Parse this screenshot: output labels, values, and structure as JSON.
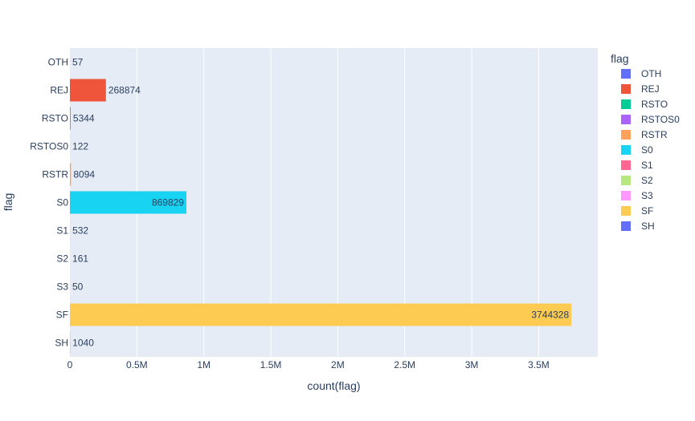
{
  "chart_data": {
    "type": "bar",
    "orientation": "horizontal",
    "xlabel": "count(flag)",
    "ylabel": "flag",
    "xlim": [
      0,
      3941398
    ],
    "x_ticks": [
      {
        "value": 0,
        "label": "0"
      },
      {
        "value": 500000,
        "label": "0.5M"
      },
      {
        "value": 1000000,
        "label": "1M"
      },
      {
        "value": 1500000,
        "label": "1.5M"
      },
      {
        "value": 2000000,
        "label": "2M"
      },
      {
        "value": 2500000,
        "label": "2.5M"
      },
      {
        "value": 3000000,
        "label": "3M"
      },
      {
        "value": 3500000,
        "label": "3.5M"
      }
    ],
    "grid": true,
    "legend": {
      "title": "flag",
      "placement": "right"
    },
    "categories": [
      "OTH",
      "REJ",
      "RSTO",
      "RSTOS0",
      "RSTR",
      "S0",
      "S1",
      "S2",
      "S3",
      "SF",
      "SH"
    ],
    "series": [
      {
        "name": "OTH",
        "value": 57,
        "label": "57",
        "color": "#636efa"
      },
      {
        "name": "REJ",
        "value": 268874,
        "label": "268874",
        "color": "#EF553B"
      },
      {
        "name": "RSTO",
        "value": 5344,
        "label": "5344",
        "color": "#00cc96"
      },
      {
        "name": "RSTOS0",
        "value": 122,
        "label": "122",
        "color": "#ab63fa"
      },
      {
        "name": "RSTR",
        "value": 8094,
        "label": "8094",
        "color": "#FFA15A"
      },
      {
        "name": "S0",
        "value": 869829,
        "label": "869829",
        "color": "#19d3f3"
      },
      {
        "name": "S1",
        "value": 532,
        "label": "532",
        "color": "#FF6692"
      },
      {
        "name": "S2",
        "value": 161,
        "label": "161",
        "color": "#B6E880"
      },
      {
        "name": "S3",
        "value": 50,
        "label": "50",
        "color": "#FF97FF"
      },
      {
        "name": "SF",
        "value": 3744328,
        "label": "3744328",
        "color": "#FECB52"
      },
      {
        "name": "SH",
        "value": 1040,
        "label": "1040",
        "color": "#636efa"
      }
    ],
    "colors": {
      "plot_background": "#e5ecf6",
      "gridline": "#ffffff",
      "text": "#2a3f5f"
    }
  }
}
